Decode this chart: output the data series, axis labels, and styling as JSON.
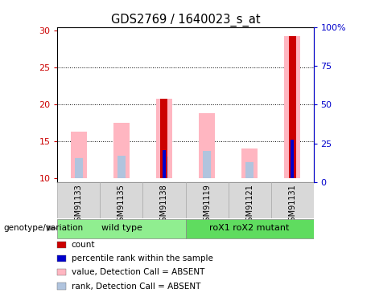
{
  "title": "GDS2769 / 1640023_s_at",
  "samples": [
    "GSM91133",
    "GSM91135",
    "GSM91138",
    "GSM91119",
    "GSM91121",
    "GSM91131"
  ],
  "groups": [
    {
      "label": "wild type",
      "indices": [
        0,
        1,
        2
      ],
      "color": "#90ee90"
    },
    {
      "label": "roX1 roX2 mutant",
      "indices": [
        3,
        4,
        5
      ],
      "color": "#5fdc5f"
    }
  ],
  "ylim_left": [
    9.5,
    30.5
  ],
  "ylim_right": [
    0,
    100
  ],
  "yticks_left": [
    10,
    15,
    20,
    25,
    30
  ],
  "yticks_right": [
    0,
    25,
    50,
    75,
    100
  ],
  "ytick_labels_right": [
    "0",
    "25",
    "50",
    "75",
    "100%"
  ],
  "pink_bars": {
    "bottoms": [
      10,
      10,
      10,
      10,
      10,
      10
    ],
    "tops": [
      16.3,
      17.5,
      20.8,
      18.8,
      14.0,
      29.3
    ]
  },
  "lightblue_bars": {
    "bottoms": [
      10,
      10,
      10,
      10,
      10,
      10
    ],
    "tops": [
      12.8,
      13.1,
      13.0,
      13.7,
      12.2,
      10.0
    ]
  },
  "red_bars": {
    "values": [
      0,
      0,
      20.8,
      0,
      0,
      29.3
    ],
    "bottoms": [
      10,
      10,
      10,
      10,
      10,
      10
    ]
  },
  "blue_bars": {
    "values": [
      0,
      0,
      13.8,
      0,
      0,
      15.3
    ],
    "bottoms": [
      10,
      10,
      10,
      10,
      10,
      10
    ]
  },
  "pink_color": "#ffb6c1",
  "lightblue_color": "#b0c4de",
  "red_color": "#cc0000",
  "blue_color": "#0000cc",
  "left_axis_color": "#cc0000",
  "right_axis_color": "#0000cc",
  "legend_items": [
    {
      "color": "#cc0000",
      "label": "count"
    },
    {
      "color": "#0000cc",
      "label": "percentile rank within the sample"
    },
    {
      "color": "#ffb6c1",
      "label": "value, Detection Call = ABSENT"
    },
    {
      "color": "#b0c4de",
      "label": "rank, Detection Call = ABSENT"
    }
  ],
  "genotype_label": "genotype/variation",
  "background_color": "#ffffff"
}
